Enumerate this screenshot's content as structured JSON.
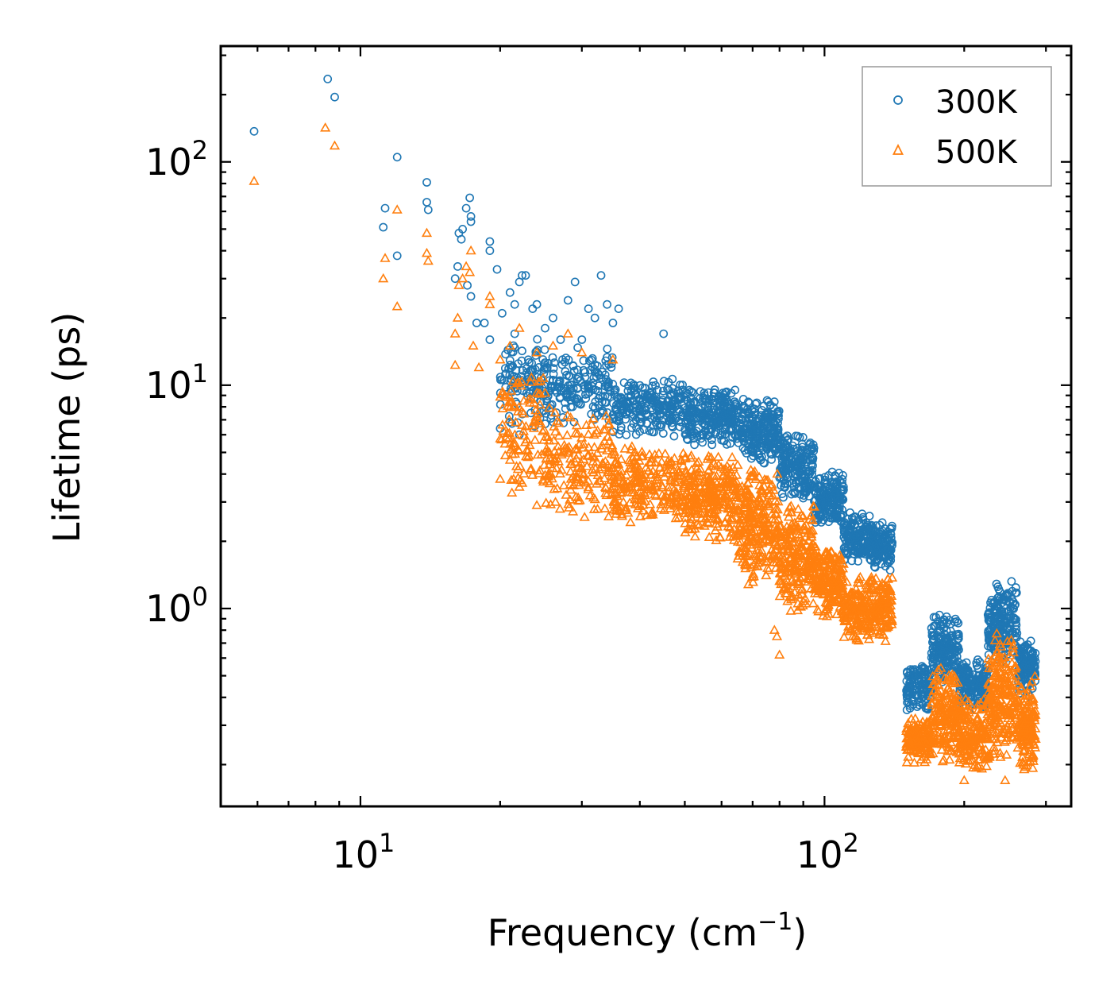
{
  "chart_data": {
    "type": "scatter",
    "title": "",
    "xlabel": {
      "main": "Frequency (cm",
      "sup": "−1",
      "close": ")"
    },
    "ylabel": "Lifetime (ps)",
    "xscale": "log",
    "yscale": "log",
    "xlim": [
      5.0,
      340.0
    ],
    "ylim": [
      0.13,
      330.0
    ],
    "x_ticks": [
      {
        "value": 10,
        "base": "10",
        "exp": "1"
      },
      {
        "value": 100,
        "base": "10",
        "exp": "2"
      }
    ],
    "y_ticks": [
      {
        "value": 1,
        "base": "10",
        "exp": "0"
      },
      {
        "value": 10,
        "base": "10",
        "exp": "1"
      },
      {
        "value": 100,
        "base": "10",
        "exp": "2"
      }
    ],
    "grid": false,
    "legend_position": "top-right",
    "series": [
      {
        "name": "300K",
        "marker": "circle",
        "color": "#1f77b4",
        "points": [
          [
            5.9,
            137
          ],
          [
            8.5,
            235
          ],
          [
            8.8,
            195
          ],
          [
            12.0,
            105
          ],
          [
            11.3,
            62
          ],
          [
            11.2,
            51
          ],
          [
            12.0,
            38
          ],
          [
            13.9,
            81
          ],
          [
            13.9,
            66
          ],
          [
            14.0,
            61
          ],
          [
            16.3,
            48
          ],
          [
            16.6,
            50
          ],
          [
            16.9,
            62
          ],
          [
            17.3,
            57
          ],
          [
            17.3,
            54
          ],
          [
            17.2,
            69
          ],
          [
            16.5,
            45
          ],
          [
            16.2,
            34
          ],
          [
            16.0,
            30
          ],
          [
            17.0,
            28
          ],
          [
            17.3,
            25
          ],
          [
            19.0,
            44
          ],
          [
            19.0,
            40
          ],
          [
            19.7,
            33
          ],
          [
            20.2,
            21
          ],
          [
            21.0,
            26
          ],
          [
            21.5,
            23
          ],
          [
            22.0,
            29
          ],
          [
            22.3,
            31
          ],
          [
            22.7,
            31
          ],
          [
            23.5,
            22
          ],
          [
            24.0,
            23
          ],
          [
            25.0,
            18
          ],
          [
            26.0,
            20
          ],
          [
            27.0,
            16
          ],
          [
            28.0,
            24
          ],
          [
            29.0,
            29
          ],
          [
            30.0,
            16
          ],
          [
            31.0,
            22
          ],
          [
            32.0,
            20
          ],
          [
            33.0,
            31
          ],
          [
            34.0,
            23
          ],
          [
            35.0,
            19
          ],
          [
            36.0,
            22
          ],
          [
            45.0,
            17
          ],
          [
            20.0,
            6.4
          ],
          [
            22.0,
            6.0
          ],
          [
            19.0,
            16
          ],
          [
            18.5,
            19
          ],
          [
            17.8,
            19
          ],
          [
            21.5,
            17
          ],
          [
            23.0,
            13
          ]
        ],
        "bands": [
          {
            "x": [
              20,
              25
            ],
            "y": [
              6,
              18
            ],
            "n": 110
          },
          {
            "x": [
              25,
              35
            ],
            "y": [
              6.5,
              15
            ],
            "n": 170
          },
          {
            "x": [
              35,
              50
            ],
            "y": [
              5.8,
              11
            ],
            "n": 230
          },
          {
            "x": [
              50,
              65
            ],
            "y": [
              5.3,
              10
            ],
            "n": 260
          },
          {
            "x": [
              65,
              80
            ],
            "y": [
              4.3,
              8.8
            ],
            "n": 230
          },
          {
            "x": [
              80,
              95
            ],
            "y": [
              3.0,
              6.2
            ],
            "n": 200
          },
          {
            "x": [
              95,
              110
            ],
            "y": [
              2.3,
              4.2
            ],
            "n": 180
          },
          {
            "x": [
              110,
              125
            ],
            "y": [
              1.55,
              2.8
            ],
            "n": 140
          },
          {
            "x": [
              125,
              140
            ],
            "y": [
              1.45,
              2.5
            ],
            "n": 140
          },
          {
            "x": [
              150,
              170
            ],
            "y": [
              0.33,
              0.6
            ],
            "n": 130
          },
          {
            "x": [
              170,
              195
            ],
            "y": [
              0.45,
              0.95
            ],
            "n": 180
          },
          {
            "x": [
              195,
              225
            ],
            "y": [
              0.35,
              0.6
            ],
            "n": 170
          },
          {
            "x": [
              225,
              260
            ],
            "y": [
              0.55,
              1.35
            ],
            "n": 210
          },
          {
            "x": [
              260,
              285
            ],
            "y": [
              0.4,
              0.75
            ],
            "n": 140
          }
        ]
      },
      {
        "name": "500K",
        "marker": "triangle",
        "color": "#ff7f0e",
        "points": [
          [
            5.9,
            82
          ],
          [
            8.4,
            142
          ],
          [
            8.8,
            118
          ],
          [
            12.0,
            61
          ],
          [
            11.3,
            37
          ],
          [
            11.2,
            30
          ],
          [
            12.0,
            22.5
          ],
          [
            13.9,
            48
          ],
          [
            13.9,
            39
          ],
          [
            14.0,
            36
          ],
          [
            16.3,
            28
          ],
          [
            16.6,
            30
          ],
          [
            16.9,
            34
          ],
          [
            17.3,
            40
          ],
          [
            17.2,
            32
          ],
          [
            16.2,
            20
          ],
          [
            16.0,
            17
          ],
          [
            16.0,
            12.3
          ],
          [
            17.5,
            15
          ],
          [
            18.0,
            12
          ],
          [
            19.0,
            25
          ],
          [
            19.0,
            23
          ],
          [
            20.0,
            13
          ],
          [
            21.0,
            15
          ],
          [
            22.0,
            18
          ],
          [
            24.0,
            14
          ],
          [
            26.0,
            15
          ],
          [
            28.0,
            17
          ],
          [
            30.0,
            14
          ],
          [
            35.0,
            13
          ],
          [
            20.0,
            3.8
          ],
          [
            22.0,
            3.5
          ],
          [
            21.5,
            5.5
          ],
          [
            24.0,
            2.9
          ],
          [
            80.0,
            0.62
          ],
          [
            79.0,
            0.75
          ],
          [
            78.0,
            0.8
          ],
          [
            200.0,
            0.17
          ],
          [
            245.0,
            0.17
          ],
          [
            232.0,
            0.23
          ]
        ],
        "bands": [
          {
            "x": [
              20,
              25
            ],
            "y": [
              3.0,
              12
            ],
            "n": 110
          },
          {
            "x": [
              25,
              35
            ],
            "y": [
              2.5,
              8
            ],
            "n": 180
          },
          {
            "x": [
              35,
              50
            ],
            "y": [
              2.3,
              5.5
            ],
            "n": 240
          },
          {
            "x": [
              50,
              65
            ],
            "y": [
              1.9,
              5.2
            ],
            "n": 260
          },
          {
            "x": [
              65,
              80
            ],
            "y": [
              1.2,
              4.5
            ],
            "n": 260
          },
          {
            "x": [
              80,
              95
            ],
            "y": [
              0.9,
              3.2
            ],
            "n": 220
          },
          {
            "x": [
              95,
              110
            ],
            "y": [
              0.9,
              2.0
            ],
            "n": 190
          },
          {
            "x": [
              110,
              125
            ],
            "y": [
              0.7,
              1.4
            ],
            "n": 150
          },
          {
            "x": [
              125,
              140
            ],
            "y": [
              0.7,
              1.45
            ],
            "n": 140
          },
          {
            "x": [
              150,
              170
            ],
            "y": [
              0.2,
              0.33
            ],
            "n": 140
          },
          {
            "x": [
              170,
              195
            ],
            "y": [
              0.2,
              0.58
            ],
            "n": 190
          },
          {
            "x": [
              195,
              225
            ],
            "y": [
              0.18,
              0.4
            ],
            "n": 180
          },
          {
            "x": [
              225,
              260
            ],
            "y": [
              0.19,
              0.85
            ],
            "n": 220
          },
          {
            "x": [
              260,
              285
            ],
            "y": [
              0.18,
              0.5
            ],
            "n": 150
          }
        ]
      }
    ]
  }
}
